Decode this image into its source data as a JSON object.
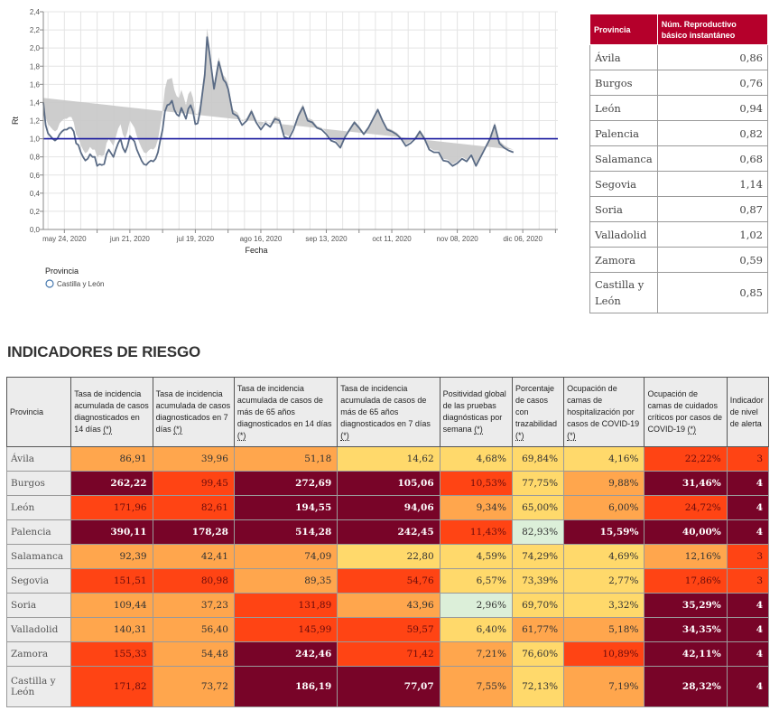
{
  "chart_data": {
    "type": "line",
    "title": "",
    "xlabel": "Fecha",
    "ylabel": "Rt",
    "ylim": [
      0,
      2.4
    ],
    "yticks": [
      "0,0",
      "0,2",
      "0,4",
      "0,6",
      "0,8",
      "1,0",
      "1,2",
      "1,4",
      "1,6",
      "1,8",
      "2,0",
      "2,2",
      "2,4"
    ],
    "ytick_values": [
      0,
      0.2,
      0.4,
      0.6,
      0.8,
      1.0,
      1.2,
      1.4,
      1.6,
      1.8,
      2.0,
      2.2,
      2.4
    ],
    "xticks": [
      "may 24, 2020",
      "jun 21, 2020",
      "jul 19, 2020",
      "ago 16, 2020",
      "sep 13, 2020",
      "oct 11, 2020",
      "nov 08, 2020",
      "dic 06, 2020"
    ],
    "x_start_day": -9,
    "x_end_day": 211,
    "xtick_days": [
      0,
      28,
      56,
      84,
      112,
      140,
      168,
      196
    ],
    "grid": true,
    "reference_line": 1.0,
    "legend": {
      "title": "Provincia",
      "position": "bottom-left",
      "entries": [
        "Castilla y León"
      ]
    },
    "series": [
      {
        "name": "Castilla y León",
        "x_days": [
          -9,
          -8,
          -7,
          -6,
          -5,
          -4,
          -3,
          -2,
          -1,
          0,
          1,
          2,
          3,
          4,
          5,
          6,
          7,
          8,
          9,
          10,
          11,
          12,
          13,
          14,
          15,
          16,
          17,
          18,
          19,
          20,
          21,
          22,
          23,
          24,
          25,
          26,
          27,
          28,
          29,
          30,
          31,
          32,
          33,
          34,
          35,
          36,
          37,
          38,
          39,
          40,
          41,
          42,
          43,
          44,
          45,
          46,
          47,
          48,
          49,
          50,
          51,
          52,
          53,
          54,
          55,
          56,
          57,
          58,
          59,
          60,
          61,
          62,
          63,
          64,
          65,
          66,
          67,
          68,
          69,
          70,
          72,
          74,
          76,
          78,
          80,
          82,
          84,
          86,
          88,
          90,
          92,
          94,
          96,
          98,
          100,
          102,
          104,
          106,
          108,
          110,
          112,
          114,
          116,
          118,
          120,
          122,
          124,
          126,
          128,
          130,
          132,
          134,
          136,
          138,
          140,
          142,
          144,
          146,
          148,
          150,
          152,
          154,
          156,
          158,
          160,
          162,
          164,
          166,
          168,
          170,
          172,
          174,
          176,
          178,
          180,
          182,
          184,
          186,
          188,
          190,
          192,
          194,
          196,
          198,
          200,
          202,
          204,
          206,
          208,
          210,
          211
        ],
        "y": [
          1.4,
          1.15,
          1.06,
          1.03,
          1.0,
          0.98,
          1.0,
          1.05,
          1.08,
          1.1,
          1.1,
          1.12,
          1.12,
          1.08,
          0.95,
          0.93,
          0.85,
          0.8,
          0.76,
          0.78,
          0.83,
          0.8,
          0.8,
          0.7,
          0.72,
          0.71,
          0.72,
          0.83,
          0.88,
          0.84,
          0.8,
          0.88,
          0.95,
          1.0,
          0.9,
          0.85,
          0.92,
          1.03,
          1.0,
          0.97,
          0.88,
          0.82,
          0.76,
          0.72,
          0.71,
          0.74,
          0.76,
          0.75,
          0.78,
          0.85,
          0.98,
          1.1,
          1.3,
          1.37,
          1.38,
          1.42,
          1.32,
          1.27,
          1.25,
          1.34,
          1.28,
          1.22,
          1.33,
          1.37,
          1.3,
          1.16,
          1.17,
          1.3,
          1.5,
          1.7,
          2.12,
          1.95,
          1.75,
          1.55,
          1.7,
          1.85,
          1.75,
          1.65,
          1.62,
          1.55,
          1.28,
          1.25,
          1.15,
          1.2,
          1.3,
          1.18,
          1.1,
          1.17,
          1.13,
          1.22,
          1.2,
          1.02,
          1.0,
          1.1,
          1.25,
          1.35,
          1.2,
          1.18,
          1.12,
          1.1,
          1.05,
          0.98,
          0.96,
          0.9,
          1.02,
          1.1,
          1.18,
          1.12,
          1.05,
          1.12,
          1.22,
          1.32,
          1.2,
          1.1,
          1.08,
          1.05,
          1.0,
          0.92,
          0.95,
          1.0,
          1.08,
          1.0,
          0.88,
          0.85,
          0.85,
          0.76,
          0.75,
          0.7,
          0.73,
          0.78,
          0.75,
          0.82,
          0.7,
          0.8,
          0.9,
          1.0,
          1.15,
          0.95,
          0.9,
          0.87,
          0.85
        ],
        "ci_half_width": [
          0.05,
          0.08,
          0.1,
          0.1,
          0.1,
          0.1,
          0.1,
          0.12,
          0.12,
          0.12,
          0.12,
          0.12,
          0.12,
          0.1,
          0.1,
          0.08,
          0.08,
          0.08,
          0.08,
          0.08,
          0.08,
          0.08,
          0.08,
          0.1,
          0.1,
          0.1,
          0.1,
          0.12,
          0.12,
          0.12,
          0.12,
          0.14,
          0.16,
          0.16,
          0.15,
          0.15,
          0.16,
          0.17,
          0.16,
          0.15,
          0.15,
          0.14,
          0.14,
          0.13,
          0.13,
          0.13,
          0.13,
          0.13,
          0.13,
          0.14,
          0.16,
          0.2,
          0.25,
          0.28,
          0.28,
          0.25,
          0.22,
          0.2,
          0.2,
          0.2,
          0.18,
          0.15,
          0.16,
          0.16,
          0.15,
          0.12,
          0.1,
          0.08,
          0.08,
          0.08,
          0.1,
          0.08,
          0.06,
          0.06,
          0.06,
          0.05,
          0.05,
          0.05,
          0.05,
          0.05,
          0.04,
          0.04,
          0.04,
          0.03,
          0.03,
          0.03,
          0.03,
          0.03,
          0.03,
          0.03,
          0.03,
          0.03,
          0.03,
          0.03,
          0.03,
          0.03,
          0.03,
          0.03,
          0.02,
          0.02,
          0.02,
          0.02,
          0.02,
          0.02,
          0.02,
          0.02,
          0.02,
          0.02,
          0.02,
          0.02,
          0.02,
          0.02,
          0.02,
          0.02,
          0.02,
          0.02,
          0.02,
          0.02,
          0.02,
          0.02,
          0.02,
          0.02,
          0.02,
          0.02,
          0.02,
          0.02,
          0.02,
          0.02,
          0.02,
          0.02,
          0.02,
          0.02,
          0.02,
          0.02,
          0.02,
          0.02,
          0.03,
          0.03,
          0.03,
          0.03,
          0.03
        ]
      }
    ]
  },
  "colors": {
    "line": "#5a6b85",
    "band": "#c8c8c8",
    "reference_line": "#1a1aa0",
    "grid": "#e4e4e4",
    "rt_header_bg": "#b5002b",
    "level_0": "#dcefd9",
    "level_1": "#ffd96b",
    "level_2": "#ffa64d",
    "level_3": "#ff4414",
    "level_4": "#780428"
  },
  "rt_table": {
    "headers": [
      "Provincia",
      "Núm. Reproductivo básico instantáneo"
    ],
    "rows": [
      {
        "provincia": "Ávila",
        "valor": "0,86"
      },
      {
        "provincia": "Burgos",
        "valor": "0,76"
      },
      {
        "provincia": "León",
        "valor": "0,94"
      },
      {
        "provincia": "Palencia",
        "valor": "0,82"
      },
      {
        "provincia": "Salamanca",
        "valor": "0,68"
      },
      {
        "provincia": "Segovia",
        "valor": "1,14"
      },
      {
        "provincia": "Soria",
        "valor": "0,87"
      },
      {
        "provincia": "Valladolid",
        "valor": "1,02"
      },
      {
        "provincia": "Zamora",
        "valor": "0,59"
      },
      {
        "provincia": "Castilla y León",
        "valor": "0,85"
      }
    ]
  },
  "risk_section": {
    "title": "INDICADORES DE RIESGO",
    "note_marker": "(*)",
    "headers": [
      {
        "text": "Provincia",
        "note": false
      },
      {
        "text": "Tasa de incidencia acumulada de casos diagnosticados en 14 días",
        "note": true
      },
      {
        "text": "Tasa de incidencia acumulada de casos diagnosticados en 7 días",
        "note": true
      },
      {
        "text": "Tasa de incidencia acumulada de casos de más de 65 años diagnosticados en 14 días",
        "note": true
      },
      {
        "text": "Tasa de incidencia acumulada de casos de más de 65 años diagnosticados en 7 días",
        "note": true
      },
      {
        "text": "Positividad global de las pruebas diagnósticas por semana",
        "note": true
      },
      {
        "text": "Porcentaje de casos con trazabilidad",
        "note": true
      },
      {
        "text": "Ocupación de camas de hospitalización por casos de COVID-19",
        "note": true
      },
      {
        "text": "Ocupación de camas de cuidados críticos por casos de COVID-19",
        "note": true
      },
      {
        "text": "Indicador de nivel de alerta",
        "note": false
      }
    ],
    "rows": [
      {
        "provincia": "Ávila",
        "values": [
          "86,91",
          "39,96",
          "51,18",
          "14,62",
          "4,68%",
          "69,84%",
          "4,16%",
          "22,22%",
          "3"
        ],
        "levels": [
          2,
          2,
          2,
          1,
          1,
          1,
          1,
          3,
          3
        ]
      },
      {
        "provincia": "Burgos",
        "values": [
          "262,22",
          "99,45",
          "272,69",
          "105,06",
          "10,53%",
          "77,75%",
          "9,88%",
          "31,46%",
          "4"
        ],
        "levels": [
          4,
          3,
          4,
          4,
          3,
          1,
          2,
          4,
          4
        ]
      },
      {
        "provincia": "León",
        "values": [
          "171,96",
          "82,61",
          "194,55",
          "94,06",
          "9,34%",
          "65,00%",
          "6,00%",
          "24,72%",
          "4"
        ],
        "levels": [
          3,
          3,
          4,
          4,
          2,
          1,
          2,
          3,
          4
        ]
      },
      {
        "provincia": "Palencia",
        "values": [
          "390,11",
          "178,28",
          "514,28",
          "242,45",
          "11,43%",
          "82,93%",
          "15,59%",
          "40,00%",
          "4"
        ],
        "levels": [
          4,
          4,
          4,
          4,
          3,
          0,
          4,
          4,
          4
        ]
      },
      {
        "provincia": "Salamanca",
        "values": [
          "92,39",
          "42,41",
          "74,09",
          "22,80",
          "4,59%",
          "74,29%",
          "4,69%",
          "12,16%",
          "3"
        ],
        "levels": [
          2,
          2,
          2,
          1,
          1,
          1,
          1,
          2,
          3
        ]
      },
      {
        "provincia": "Segovia",
        "values": [
          "151,51",
          "80,98",
          "89,35",
          "54,76",
          "6,57%",
          "73,39%",
          "2,77%",
          "17,86%",
          "3"
        ],
        "levels": [
          3,
          3,
          2,
          3,
          1,
          1,
          1,
          3,
          3
        ]
      },
      {
        "provincia": "Soria",
        "values": [
          "109,44",
          "37,23",
          "131,89",
          "43,96",
          "2,96%",
          "69,70%",
          "3,32%",
          "35,29%",
          "4"
        ],
        "levels": [
          2,
          2,
          3,
          2,
          0,
          1,
          1,
          4,
          4
        ]
      },
      {
        "provincia": "Valladolid",
        "values": [
          "140,31",
          "56,40",
          "145,99",
          "59,57",
          "6,40%",
          "61,77%",
          "5,18%",
          "34,35%",
          "4"
        ],
        "levels": [
          2,
          2,
          3,
          3,
          1,
          2,
          2,
          4,
          4
        ]
      },
      {
        "provincia": "Zamora",
        "values": [
          "155,33",
          "54,48",
          "242,46",
          "71,42",
          "7,21%",
          "76,60%",
          "10,89%",
          "42,11%",
          "4"
        ],
        "levels": [
          3,
          2,
          4,
          3,
          2,
          1,
          3,
          4,
          4
        ]
      },
      {
        "provincia": "Castilla y León",
        "values": [
          "171,82",
          "73,72",
          "186,19",
          "77,07",
          "7,55%",
          "72,13%",
          "7,19%",
          "28,32%",
          "4"
        ],
        "levels": [
          3,
          2,
          4,
          4,
          2,
          1,
          2,
          4,
          4
        ]
      }
    ]
  }
}
